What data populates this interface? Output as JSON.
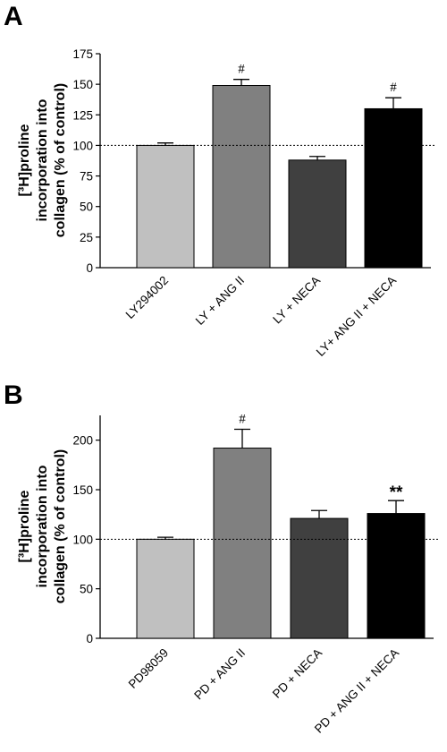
{
  "chart_data": [
    {
      "panel": "A",
      "type": "bar",
      "ylabel_lines": [
        "[³H]proline",
        "incorporation into",
        "collagen (% of control)"
      ],
      "ylim": [
        0,
        175
      ],
      "yticks": [
        0,
        25,
        50,
        75,
        100,
        125,
        150,
        175
      ],
      "reference_line": 100,
      "categories": [
        "LY294002",
        "LY + ANG II",
        "LY + NECA",
        "LY+ ANG II + NECA"
      ],
      "values": [
        100,
        149,
        88,
        130
      ],
      "errors": [
        2,
        5,
        3,
        9
      ],
      "annotations": [
        "",
        "#",
        "",
        "#"
      ],
      "colors": [
        "#c0c0c0",
        "#808080",
        "#404040",
        "#000000"
      ]
    },
    {
      "panel": "B",
      "type": "bar",
      "ylabel_lines": [
        "[³H]proline",
        "incorporation into",
        "collagen (% of control)"
      ],
      "ylim": [
        0,
        225
      ],
      "yticks": [
        0,
        50,
        100,
        150,
        200
      ],
      "reference_line": 100,
      "categories": [
        "PD98059",
        "PD + ANG II",
        "PD + NECA",
        "PD + ANG II + NECA"
      ],
      "values": [
        100,
        192,
        121,
        126
      ],
      "errors": [
        2,
        19,
        8,
        13
      ],
      "annotations": [
        "",
        "#",
        "",
        "**"
      ],
      "colors": [
        "#c0c0c0",
        "#808080",
        "#404040",
        "#000000"
      ]
    }
  ]
}
